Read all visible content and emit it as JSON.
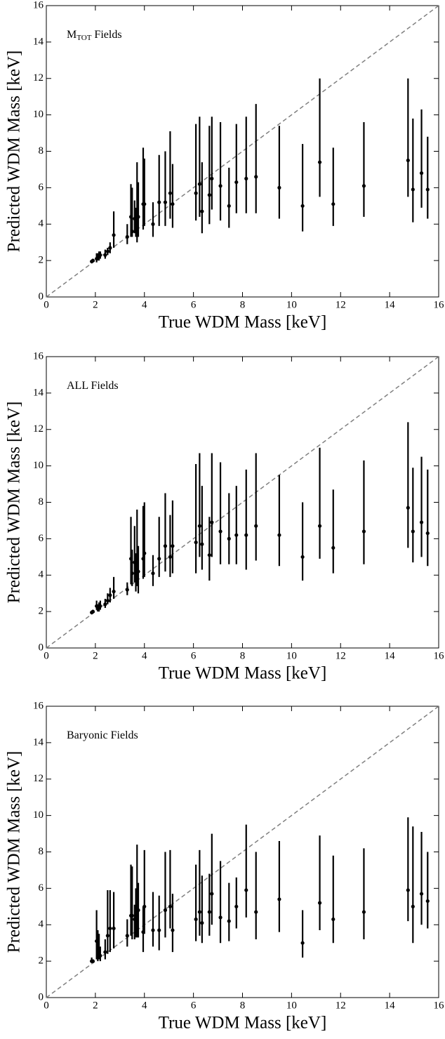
{
  "chart_data": [
    {
      "type": "errorbar",
      "annotation": [
        "M",
        "TOT",
        " Fields"
      ],
      "x_label": "True WDM Mass [keV]",
      "y_label": "Predicted WDM Mass [keV]",
      "xlim": [
        0,
        16
      ],
      "ylim": [
        0,
        16
      ],
      "xticks": [
        0,
        2,
        4,
        6,
        8,
        10,
        12,
        14,
        16
      ],
      "yticks": [
        0,
        2,
        4,
        6,
        8,
        10,
        12,
        14,
        16
      ],
      "color": "#000000",
      "reference_color": "#808080",
      "x": [
        1.85,
        1.9,
        2.05,
        2.1,
        2.15,
        2.2,
        2.4,
        2.5,
        2.6,
        2.75,
        3.3,
        3.45,
        3.5,
        3.6,
        3.65,
        3.7,
        3.75,
        3.95,
        4.0,
        4.35,
        4.6,
        4.85,
        5.05,
        5.15,
        6.1,
        6.25,
        6.35,
        6.65,
        6.75,
        7.1,
        7.45,
        7.75,
        8.15,
        8.55,
        9.5,
        10.45,
        11.15,
        11.7,
        12.95,
        14.75,
        14.95,
        15.3,
        15.55
      ],
      "values": [
        1.95,
        2.0,
        2.1,
        2.15,
        2.2,
        2.3,
        2.3,
        2.5,
        2.7,
        3.4,
        3.3,
        4.4,
        3.6,
        4.3,
        4.0,
        4.3,
        4.4,
        5.1,
        5.1,
        4.0,
        5.2,
        5.2,
        5.7,
        5.1,
        5.7,
        6.2,
        4.7,
        5.6,
        6.5,
        6.1,
        5.0,
        6.3,
        6.5,
        6.6,
        6.0,
        5.0,
        7.4,
        5.1,
        6.1,
        7.5,
        5.9,
        6.8,
        5.9
      ],
      "y_low": [
        1.9,
        1.95,
        1.9,
        2.0,
        2.0,
        2.1,
        2.1,
        2.3,
        2.4,
        2.7,
        2.9,
        3.3,
        3.3,
        3.5,
        3.3,
        3.0,
        3.3,
        3.7,
        3.9,
        3.3,
        3.9,
        3.9,
        4.3,
        3.8,
        4.2,
        4.4,
        3.5,
        4.0,
        4.8,
        4.2,
        3.8,
        4.6,
        4.6,
        4.6,
        4.3,
        3.6,
        5.5,
        3.9,
        4.4,
        5.5,
        4.1,
        4.9,
        4.3
      ],
      "y_high": [
        2.0,
        2.1,
        2.4,
        2.4,
        2.5,
        2.5,
        2.6,
        2.7,
        3.0,
        4.7,
        4.0,
        6.2,
        6.0,
        5.3,
        4.9,
        7.4,
        6.3,
        8.2,
        7.6,
        5.2,
        7.8,
        8.0,
        9.1,
        7.3,
        9.5,
        9.9,
        7.4,
        9.4,
        9.9,
        9.6,
        7.1,
        9.5,
        9.9,
        10.6,
        9.4,
        8.4,
        12.0,
        8.2,
        9.6,
        12.0,
        9.8,
        10.3,
        8.8
      ]
    },
    {
      "type": "errorbar",
      "annotation": [
        "ALL Fields"
      ],
      "x_label": "True WDM Mass [keV]",
      "y_label": "Predicted WDM Mass [keV]",
      "xlim": [
        0,
        16
      ],
      "ylim": [
        0,
        16
      ],
      "xticks": [
        0,
        2,
        4,
        6,
        8,
        10,
        12,
        14,
        16
      ],
      "yticks": [
        0,
        2,
        4,
        6,
        8,
        10,
        12,
        14,
        16
      ],
      "color": "#000000",
      "reference_color": "#808080",
      "x": [
        1.85,
        1.9,
        2.05,
        2.1,
        2.15,
        2.2,
        2.4,
        2.5,
        2.6,
        2.75,
        3.3,
        3.45,
        3.5,
        3.6,
        3.65,
        3.7,
        3.75,
        3.95,
        4.0,
        4.35,
        4.6,
        4.85,
        5.05,
        5.15,
        6.1,
        6.25,
        6.35,
        6.65,
        6.75,
        7.1,
        7.45,
        7.75,
        8.15,
        8.55,
        9.5,
        10.45,
        11.15,
        11.7,
        12.95,
        14.75,
        14.95,
        15.3,
        15.55
      ],
      "values": [
        1.95,
        2.0,
        2.3,
        2.15,
        2.2,
        2.3,
        2.4,
        2.6,
        2.9,
        3.1,
        3.2,
        4.9,
        4.1,
        4.7,
        3.9,
        4.7,
        4.2,
        4.9,
        5.2,
        4.1,
        4.9,
        5.6,
        5.0,
        5.6,
        5.8,
        6.7,
        5.7,
        5.1,
        6.9,
        6.4,
        6.0,
        6.2,
        6.2,
        6.7,
        6.2,
        5.0,
        6.7,
        5.5,
        6.4,
        7.7,
        6.4,
        6.9,
        6.3
      ],
      "y_low": [
        1.9,
        1.9,
        2.1,
        2.0,
        2.0,
        2.1,
        2.2,
        2.4,
        2.5,
        2.7,
        2.9,
        3.5,
        3.4,
        3.6,
        3.1,
        3.4,
        3.0,
        3.8,
        3.9,
        3.4,
        3.9,
        4.2,
        3.9,
        4.1,
        4.1,
        5.0,
        4.3,
        3.7,
        5.0,
        4.6,
        4.6,
        4.6,
        4.3,
        4.8,
        4.5,
        3.7,
        4.9,
        4.1,
        4.6,
        5.5,
        4.7,
        5.0,
        4.5
      ],
      "y_high": [
        2.05,
        2.1,
        2.6,
        2.4,
        2.5,
        2.6,
        2.7,
        3.0,
        3.3,
        3.9,
        3.6,
        7.2,
        5.4,
        6.7,
        5.2,
        7.6,
        5.6,
        7.8,
        8.0,
        5.1,
        7.2,
        8.5,
        7.3,
        8.1,
        10.1,
        10.7,
        8.9,
        7.2,
        10.7,
        10.2,
        8.5,
        8.9,
        9.8,
        10.7,
        9.5,
        8.0,
        11.0,
        8.7,
        10.3,
        12.4,
        9.9,
        10.5,
        9.8
      ]
    },
    {
      "type": "errorbar",
      "annotation": [
        "Baryonic Fields"
      ],
      "x_label": "True WDM Mass [keV]",
      "y_label": "Predicted WDM Mass [keV]",
      "xlim": [
        0,
        16
      ],
      "ylim": [
        0,
        16
      ],
      "xticks": [
        0,
        2,
        4,
        6,
        8,
        10,
        12,
        14,
        16
      ],
      "yticks": [
        0,
        2,
        4,
        6,
        8,
        10,
        12,
        14,
        16
      ],
      "color": "#000000",
      "reference_color": "#808080",
      "x": [
        1.85,
        1.9,
        2.05,
        2.1,
        2.15,
        2.2,
        2.4,
        2.5,
        2.6,
        2.75,
        3.3,
        3.45,
        3.5,
        3.6,
        3.65,
        3.7,
        3.75,
        3.95,
        4.0,
        4.35,
        4.6,
        4.85,
        5.05,
        5.15,
        6.1,
        6.25,
        6.35,
        6.65,
        6.75,
        7.1,
        7.45,
        7.75,
        8.15,
        8.55,
        9.5,
        10.45,
        11.15,
        11.7,
        12.95,
        14.75,
        14.95,
        15.3,
        15.55
      ],
      "values": [
        2.0,
        2.0,
        3.1,
        2.3,
        2.6,
        2.3,
        2.5,
        3.4,
        3.8,
        3.8,
        3.4,
        4.5,
        4.5,
        4.3,
        4.6,
        4.6,
        4.8,
        3.6,
        5.0,
        3.7,
        3.7,
        4.8,
        5.0,
        3.7,
        4.3,
        4.7,
        4.1,
        4.7,
        5.7,
        4.4,
        4.2,
        5.0,
        5.9,
        4.7,
        5.4,
        3.0,
        5.2,
        4.3,
        4.7,
        5.9,
        5.0,
        5.7,
        5.3
      ],
      "y_low": [
        1.9,
        1.9,
        2.1,
        2.0,
        2.1,
        2.0,
        2.1,
        2.4,
        2.5,
        2.7,
        2.8,
        3.4,
        3.2,
        3.2,
        3.3,
        3.3,
        3.3,
        2.5,
        3.5,
        2.8,
        2.6,
        3.3,
        3.8,
        2.5,
        3.1,
        3.4,
        3.0,
        3.4,
        4.0,
        3.0,
        3.1,
        3.8,
        4.4,
        3.2,
        3.6,
        2.2,
        3.7,
        3.0,
        3.2,
        4.2,
        3.0,
        4.0,
        3.8
      ],
      "y_high": [
        2.2,
        2.1,
        4.8,
        3.7,
        3.5,
        2.8,
        3.2,
        5.9,
        5.9,
        5.8,
        4.3,
        7.3,
        7.2,
        5.1,
        6.0,
        8.4,
        6.3,
        5.0,
        8.1,
        5.8,
        5.6,
        8.0,
        8.1,
        5.7,
        7.3,
        8.1,
        6.7,
        6.8,
        9.0,
        7.5,
        6.3,
        6.6,
        9.5,
        8.0,
        8.6,
        4.8,
        8.9,
        7.8,
        8.2,
        9.9,
        9.4,
        9.1,
        8.0
      ]
    }
  ]
}
